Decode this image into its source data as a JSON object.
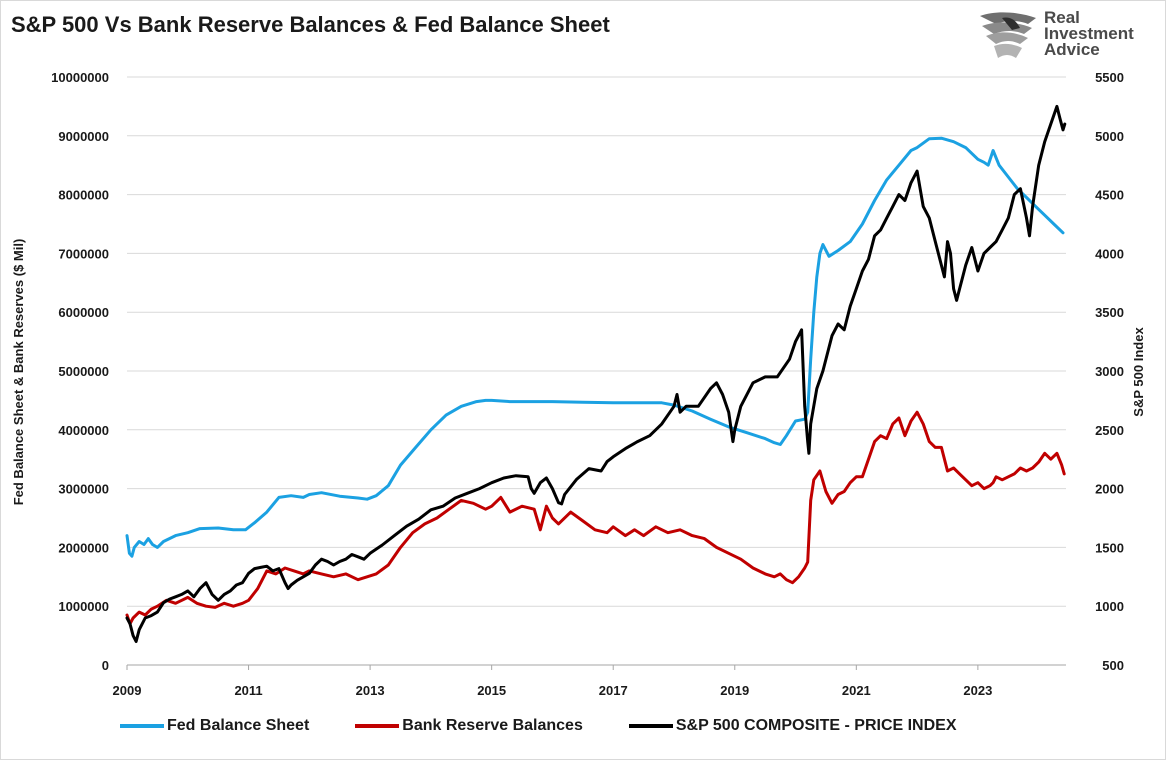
{
  "chart_data": {
    "type": "line",
    "title": "S&P 500 Vs Bank Reserve Balances & Fed Balance Sheet",
    "xlabel": "",
    "ylabel_left": "Fed Balance Sheet & Bank Reserves ($ Mil)",
    "ylabel_right": "S&P 500 Index",
    "x_ticks": [
      "2009",
      "2011",
      "2013",
      "2015",
      "2017",
      "2019",
      "2021",
      "2023"
    ],
    "xlim": [
      2009.0,
      2024.45
    ],
    "ylim_left": [
      0,
      10000000
    ],
    "y_ticks_left": [
      "0",
      "1000000",
      "2000000",
      "3000000",
      "4000000",
      "5000000",
      "6000000",
      "7000000",
      "8000000",
      "9000000",
      "10000000"
    ],
    "ylim_right": [
      500,
      5500
    ],
    "y_ticks_right": [
      "500",
      "1000",
      "1500",
      "2000",
      "2500",
      "3000",
      "3500",
      "4000",
      "4500",
      "5000",
      "5500"
    ],
    "grid": "horizontal",
    "legend_position": "bottom",
    "colors": {
      "fed": "#1ba1e2",
      "reserves": "#c00000",
      "spx": "#000000"
    },
    "series": [
      {
        "name": "Fed Balance Sheet",
        "axis": "left",
        "x": [
          2009.0,
          2009.04,
          2009.08,
          2009.12,
          2009.2,
          2009.28,
          2009.35,
          2009.42,
          2009.5,
          2009.6,
          2009.8,
          2010.0,
          2010.2,
          2010.5,
          2010.75,
          2010.95,
          2011.1,
          2011.3,
          2011.5,
          2011.7,
          2011.9,
          2012.0,
          2012.2,
          2012.5,
          2012.8,
          2012.95,
          2013.1,
          2013.3,
          2013.5,
          2013.75,
          2014.0,
          2014.25,
          2014.5,
          2014.75,
          2014.9,
          2015.0,
          2015.3,
          2015.6,
          2016.0,
          2016.5,
          2017.0,
          2017.5,
          2017.8,
          2018.0,
          2018.3,
          2018.6,
          2018.9,
          2019.2,
          2019.5,
          2019.65,
          2019.75,
          2019.85,
          2020.0,
          2020.15,
          2020.2,
          2020.25,
          2020.3,
          2020.35,
          2020.4,
          2020.45,
          2020.55,
          2020.7,
          2020.9,
          2021.1,
          2021.3,
          2021.5,
          2021.7,
          2021.9,
          2022.0,
          2022.2,
          2022.4,
          2022.6,
          2022.8,
          2023.0,
          2023.1,
          2023.17,
          2023.25,
          2023.35,
          2023.5,
          2023.65,
          2023.8,
          2023.95,
          2024.1,
          2024.25,
          2024.4
        ],
        "values": [
          2200000,
          1900000,
          1850000,
          2000000,
          2100000,
          2050000,
          2150000,
          2050000,
          2000000,
          2100000,
          2200000,
          2250000,
          2320000,
          2330000,
          2300000,
          2300000,
          2420000,
          2600000,
          2850000,
          2880000,
          2850000,
          2900000,
          2930000,
          2870000,
          2840000,
          2820000,
          2880000,
          3050000,
          3400000,
          3700000,
          4000000,
          4250000,
          4400000,
          4480000,
          4500000,
          4500000,
          4480000,
          4480000,
          4480000,
          4470000,
          4460000,
          4460000,
          4460000,
          4420000,
          4320000,
          4180000,
          4050000,
          3950000,
          3850000,
          3780000,
          3750000,
          3900000,
          4150000,
          4180000,
          4300000,
          5200000,
          6000000,
          6600000,
          7000000,
          7150000,
          6950000,
          7050000,
          7200000,
          7500000,
          7900000,
          8250000,
          8500000,
          8750000,
          8800000,
          8950000,
          8960000,
          8900000,
          8800000,
          8600000,
          8550000,
          8500000,
          8750000,
          8500000,
          8300000,
          8100000,
          7950000,
          7800000,
          7650000,
          7500000,
          7350000
        ]
      },
      {
        "name": "Bank Reserve Balances",
        "axis": "left",
        "x": [
          2009.0,
          2009.05,
          2009.1,
          2009.2,
          2009.3,
          2009.4,
          2009.5,
          2009.65,
          2009.8,
          2010.0,
          2010.15,
          2010.3,
          2010.45,
          2010.6,
          2010.75,
          2010.9,
          2011.0,
          2011.15,
          2011.3,
          2011.45,
          2011.6,
          2011.75,
          2011.9,
          2012.0,
          2012.2,
          2012.4,
          2012.6,
          2012.8,
          2012.95,
          2013.1,
          2013.3,
          2013.5,
          2013.7,
          2013.9,
          2014.1,
          2014.3,
          2014.5,
          2014.7,
          2014.9,
          2015.0,
          2015.15,
          2015.3,
          2015.5,
          2015.7,
          2015.8,
          2015.9,
          2016.0,
          2016.1,
          2016.3,
          2016.5,
          2016.7,
          2016.9,
          2017.0,
          2017.2,
          2017.35,
          2017.5,
          2017.7,
          2017.9,
          2018.1,
          2018.3,
          2018.5,
          2018.7,
          2018.9,
          2019.1,
          2019.3,
          2019.5,
          2019.65,
          2019.75,
          2019.85,
          2019.95,
          2020.05,
          2020.15,
          2020.2,
          2020.25,
          2020.3,
          2020.4,
          2020.5,
          2020.6,
          2020.7,
          2020.8,
          2020.9,
          2021.0,
          2021.1,
          2021.2,
          2021.3,
          2021.4,
          2021.5,
          2021.6,
          2021.7,
          2021.8,
          2021.9,
          2022.0,
          2022.1,
          2022.2,
          2022.3,
          2022.4,
          2022.5,
          2022.6,
          2022.7,
          2022.8,
          2022.9,
          2023.0,
          2023.1,
          2023.2,
          2023.25,
          2023.3,
          2023.4,
          2023.5,
          2023.6,
          2023.7,
          2023.8,
          2023.9,
          2024.0,
          2024.1,
          2024.2,
          2024.3,
          2024.38,
          2024.42
        ],
        "values": [
          850000,
          700000,
          800000,
          900000,
          850000,
          950000,
          1000000,
          1100000,
          1050000,
          1150000,
          1050000,
          1000000,
          980000,
          1050000,
          1000000,
          1050000,
          1100000,
          1300000,
          1600000,
          1550000,
          1650000,
          1600000,
          1550000,
          1600000,
          1550000,
          1500000,
          1550000,
          1450000,
          1500000,
          1550000,
          1700000,
          2000000,
          2250000,
          2400000,
          2500000,
          2650000,
          2800000,
          2750000,
          2650000,
          2700000,
          2850000,
          2600000,
          2700000,
          2650000,
          2300000,
          2700000,
          2500000,
          2400000,
          2600000,
          2450000,
          2300000,
          2250000,
          2350000,
          2200000,
          2300000,
          2200000,
          2350000,
          2250000,
          2300000,
          2200000,
          2150000,
          2000000,
          1900000,
          1800000,
          1650000,
          1550000,
          1500000,
          1550000,
          1450000,
          1400000,
          1500000,
          1650000,
          1750000,
          2800000,
          3150000,
          3300000,
          2950000,
          2750000,
          2900000,
          2950000,
          3100000,
          3200000,
          3200000,
          3500000,
          3800000,
          3900000,
          3850000,
          4100000,
          4200000,
          3900000,
          4150000,
          4300000,
          4100000,
          3800000,
          3700000,
          3700000,
          3300000,
          3350000,
          3250000,
          3150000,
          3050000,
          3100000,
          3000000,
          3050000,
          3100000,
          3200000,
          3150000,
          3200000,
          3250000,
          3350000,
          3300000,
          3350000,
          3450000,
          3600000,
          3500000,
          3600000,
          3400000,
          3250000
        ]
      },
      {
        "name": "S&P 500 COMPOSITE - PRICE INDEX",
        "axis": "right",
        "x": [
          2009.0,
          2009.05,
          2009.1,
          2009.15,
          2009.2,
          2009.3,
          2009.4,
          2009.5,
          2009.6,
          2009.7,
          2009.8,
          2009.9,
          2010.0,
          2010.1,
          2010.2,
          2010.3,
          2010.4,
          2010.5,
          2010.6,
          2010.7,
          2010.8,
          2010.9,
          2011.0,
          2011.1,
          2011.2,
          2011.3,
          2011.4,
          2011.5,
          2011.6,
          2011.65,
          2011.7,
          2011.8,
          2011.9,
          2012.0,
          2012.1,
          2012.2,
          2012.3,
          2012.4,
          2012.5,
          2012.6,
          2012.7,
          2012.8,
          2012.9,
          2013.0,
          2013.2,
          2013.4,
          2013.6,
          2013.8,
          2014.0,
          2014.2,
          2014.4,
          2014.6,
          2014.8,
          2015.0,
          2015.2,
          2015.4,
          2015.6,
          2015.65,
          2015.7,
          2015.8,
          2015.9,
          2016.0,
          2016.1,
          2016.15,
          2016.2,
          2016.4,
          2016.6,
          2016.8,
          2016.9,
          2017.0,
          2017.2,
          2017.4,
          2017.6,
          2017.8,
          2018.0,
          2018.05,
          2018.1,
          2018.2,
          2018.4,
          2018.6,
          2018.7,
          2018.8,
          2018.9,
          2018.97,
          2019.0,
          2019.1,
          2019.3,
          2019.5,
          2019.7,
          2019.9,
          2020.0,
          2020.05,
          2020.1,
          2020.15,
          2020.2,
          2020.22,
          2020.25,
          2020.35,
          2020.45,
          2020.6,
          2020.7,
          2020.8,
          2020.9,
          2021.0,
          2021.1,
          2021.2,
          2021.3,
          2021.4,
          2021.5,
          2021.6,
          2021.7,
          2021.8,
          2021.9,
          2022.0,
          2022.1,
          2022.2,
          2022.3,
          2022.4,
          2022.45,
          2022.5,
          2022.55,
          2022.6,
          2022.65,
          2022.7,
          2022.75,
          2022.8,
          2022.9,
          2023.0,
          2023.1,
          2023.2,
          2023.3,
          2023.4,
          2023.5,
          2023.6,
          2023.7,
          2023.8,
          2023.85,
          2023.9,
          2024.0,
          2024.1,
          2024.2,
          2024.3,
          2024.35,
          2024.4,
          2024.43
        ],
        "values": [
          900,
          850,
          750,
          700,
          800,
          900,
          920,
          950,
          1030,
          1060,
          1080,
          1100,
          1130,
          1080,
          1150,
          1200,
          1100,
          1050,
          1100,
          1130,
          1180,
          1200,
          1280,
          1320,
          1330,
          1340,
          1300,
          1320,
          1200,
          1150,
          1180,
          1220,
          1250,
          1280,
          1350,
          1400,
          1380,
          1350,
          1380,
          1400,
          1440,
          1420,
          1400,
          1450,
          1520,
          1600,
          1680,
          1740,
          1820,
          1850,
          1920,
          1960,
          2000,
          2050,
          2090,
          2110,
          2100,
          2000,
          1960,
          2050,
          2090,
          2000,
          1880,
          1870,
          1950,
          2080,
          2170,
          2150,
          2230,
          2270,
          2340,
          2400,
          2450,
          2550,
          2700,
          2800,
          2650,
          2700,
          2700,
          2850,
          2900,
          2800,
          2650,
          2400,
          2500,
          2700,
          2900,
          2950,
          2950,
          3100,
          3250,
          3300,
          3350,
          2700,
          2400,
          2300,
          2550,
          2850,
          3000,
          3300,
          3400,
          3350,
          3550,
          3700,
          3850,
          3950,
          4150,
          4200,
          4300,
          4400,
          4500,
          4450,
          4600,
          4700,
          4400,
          4300,
          4100,
          3900,
          3800,
          4100,
          4000,
          3700,
          3600,
          3700,
          3800,
          3900,
          4050,
          3850,
          4000,
          4050,
          4100,
          4200,
          4300,
          4500,
          4550,
          4300,
          4150,
          4400,
          4750,
          4950,
          5100,
          5250,
          5150,
          5050,
          5100
        ]
      }
    ]
  },
  "logo": {
    "line1": "Real",
    "line2": "Investment",
    "line3": "Advice"
  }
}
